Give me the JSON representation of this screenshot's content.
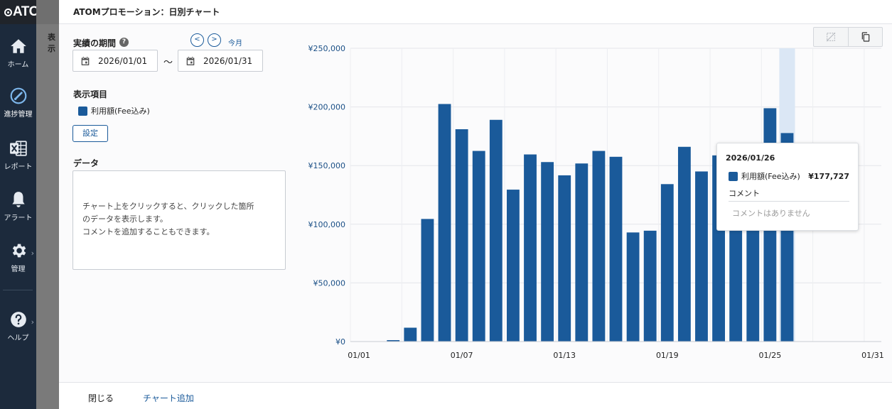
{
  "app": {
    "logo_text": "ATOM"
  },
  "nav": {
    "items": [
      {
        "label": "ホーム",
        "icon": "home-icon"
      },
      {
        "label": "進捗管理",
        "icon": "progress-icon",
        "active": true
      },
      {
        "label": "レポート",
        "icon": "excel-icon"
      },
      {
        "label": "アラート",
        "icon": "bell-icon"
      },
      {
        "label": "管理",
        "icon": "gear-icon"
      },
      {
        "label": "ヘルプ",
        "icon": "help-icon"
      }
    ]
  },
  "background": {
    "peek_label": "表示"
  },
  "dialog": {
    "title": "ATOMプロモーション：日別チャート",
    "period": {
      "label": "実績の期間",
      "help": "?",
      "prev": "<",
      "next": ">",
      "today": "今月",
      "start": "2026/01/01",
      "separator": "〜",
      "end": "2026/01/31"
    },
    "display": {
      "label": "表示項目",
      "item": "利用額(Fee込み)",
      "settings": "設定"
    },
    "data_section": {
      "label": "データ",
      "lines": [
        "チャート上をクリックすると、クリックした箇所",
        "のデータを表示します。",
        "コメントを追加することもできます。"
      ]
    },
    "footer": {
      "close": "閉じる",
      "add_chart": "チャート追加"
    },
    "tooltip": {
      "date": "2026/01/26",
      "series": "利用額(Fee込み)",
      "value": "¥177,727",
      "comment_label": "コメント",
      "comment_empty": "コメントはありません"
    }
  },
  "colors": {
    "bar": "#1a5a9a",
    "highlight": "#dbe7f5",
    "nav_bg": "#1c2a3c",
    "accent": "#1a5a9a"
  },
  "chart_data": {
    "type": "bar",
    "series": [
      {
        "name": "利用額(Fee込み)",
        "values": [
          0,
          0,
          1200,
          11800,
          104500,
          202500,
          181000,
          162500,
          189000,
          129500,
          159500,
          153000,
          141700,
          151800,
          162500,
          157500,
          93000,
          94500,
          134200,
          166000,
          145000,
          158700,
          146500,
          134000,
          198900,
          177727,
          null,
          null,
          null,
          null,
          null
        ]
      }
    ],
    "categories": [
      "01/01",
      "01/02",
      "01/03",
      "01/04",
      "01/05",
      "01/06",
      "01/07",
      "01/08",
      "01/09",
      "01/10",
      "01/11",
      "01/12",
      "01/13",
      "01/14",
      "01/15",
      "01/16",
      "01/17",
      "01/18",
      "01/19",
      "01/20",
      "01/21",
      "01/22",
      "01/23",
      "01/24",
      "01/25",
      "01/26",
      "01/27",
      "01/28",
      "01/29",
      "01/30",
      "01/31"
    ],
    "x_tick_labels": [
      "01/01",
      "01/07",
      "01/13",
      "01/19",
      "01/25",
      "01/31"
    ],
    "y_tick_labels": [
      "¥0",
      "¥50,000",
      "¥100,000",
      "¥150,000",
      "¥200,000",
      "¥250,000"
    ],
    "ylim": [
      0,
      250000
    ],
    "highlight_category": "01/26",
    "grid": true
  }
}
